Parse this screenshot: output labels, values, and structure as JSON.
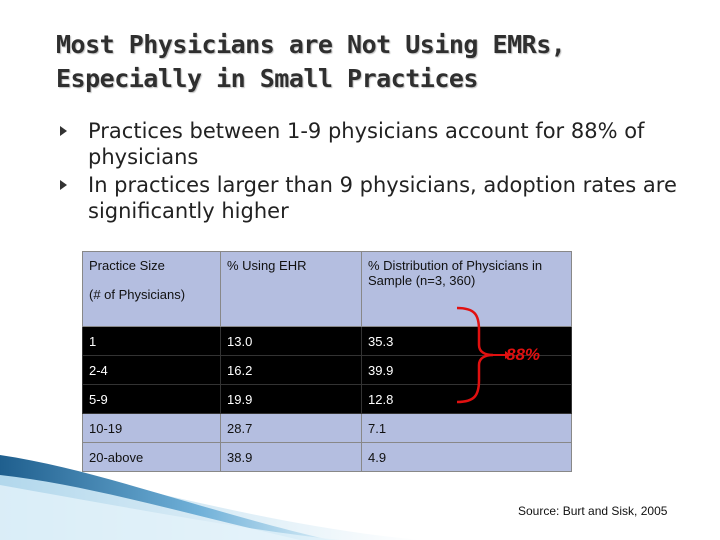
{
  "slide": {
    "title": "Most Physicians are Not Using EMRs, Especially in Small Practices",
    "bullets": [
      "Practices between 1-9 physicians account for 88% of physicians",
      "In practices larger than 9 physicians, adoption rates are significantly higher"
    ],
    "table": {
      "headers": {
        "practice_size": "Practice Size",
        "practice_size_sub": "(# of Physicians)",
        "using_ehr": "% Using EHR",
        "distribution": "% Distribution of Physicians in Sample (n=3, 360)"
      },
      "rows": [
        {
          "size": "1",
          "ehr": "13.0",
          "dist": "35.3"
        },
        {
          "size": "2-4",
          "ehr": "16.2",
          "dist": "39.9"
        },
        {
          "size": "5-9",
          "ehr": "19.9",
          "dist": "12.8"
        },
        {
          "size": "10-19",
          "ehr": "28.7",
          "dist": "7.1"
        },
        {
          "size": "20-above",
          "ehr": "38.9",
          "dist": "4.9"
        }
      ]
    },
    "annotation": "88%",
    "source": "Source:  Burt and Sisk, 2005",
    "colors": {
      "header_fill": "#b4bee0",
      "highlight_fill": "#000000",
      "annotation": "#e11010",
      "swoosh": "#2e6f9e"
    }
  }
}
